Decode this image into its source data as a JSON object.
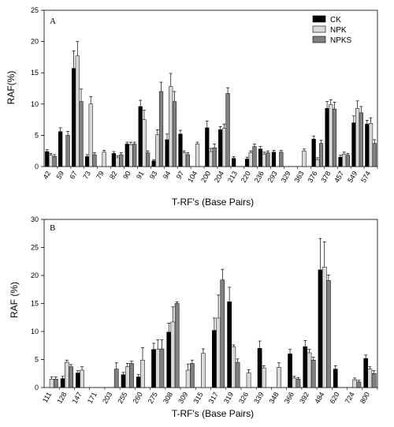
{
  "colors": {
    "CK": "#000000",
    "NPK": "#d9d9d9",
    "NPKS": "#808080"
  },
  "legend": [
    "CK",
    "NPK",
    "NPKS"
  ],
  "chart_data": [
    {
      "type": "bar",
      "panel": "A",
      "ylabel": "RAF(%)",
      "xlabel": "T-RF's (Base Pairs)",
      "ylim": [
        0,
        25
      ],
      "yticks": [
        0,
        5,
        10,
        15,
        20,
        25
      ],
      "legend_placement": "top-right",
      "categories": [
        "42",
        "59",
        "67",
        "73",
        "79",
        "82",
        "90",
        "91",
        "93",
        "94",
        "97",
        "104",
        "200",
        "204",
        "213",
        "220",
        "236",
        "293",
        "329",
        "363",
        "376",
        "378",
        "457",
        "549",
        "574"
      ],
      "series": [
        {
          "name": "CK",
          "values": [
            2.4,
            5.6,
            15.7,
            1.6,
            0,
            2.1,
            3.6,
            9.6,
            0.9,
            4.3,
            5.2,
            0,
            6.2,
            5.9,
            1.3,
            1.2,
            2.8,
            2.3,
            0,
            0,
            4.4,
            9.3,
            1.5,
            7.0,
            6.8
          ]
        },
        {
          "name": "NPK",
          "values": [
            1.8,
            0,
            17.7,
            10.0,
            2.3,
            1.4,
            3.5,
            7.5,
            5.1,
            12.8,
            2.2,
            3.6,
            2.4,
            6.1,
            0,
            2.2,
            2.0,
            0,
            0,
            2.5,
            1.1,
            9.9,
            2.0,
            9.3,
            6.9
          ]
        },
        {
          "name": "NPKS",
          "values": [
            1.6,
            5.0,
            10.4,
            1.9,
            0,
            1.9,
            3.6,
            2.2,
            12.0,
            10.4,
            1.9,
            0,
            3.0,
            11.7,
            0,
            3.2,
            2.2,
            2.3,
            0,
            0,
            3.7,
            9.2,
            1.8,
            8.6,
            3.7
          ]
        }
      ],
      "errors": [
        [
          0.3,
          0.6,
          2.8,
          0.3,
          0,
          0.3,
          0.3,
          1.0,
          0.2,
          0.9,
          0.6,
          0,
          1.1,
          0.5,
          0.3,
          0.3,
          0.4,
          0.3,
          0,
          0,
          0.5,
          1.1,
          0.3,
          1.1,
          0.6
        ],
        [
          0.3,
          0,
          2.3,
          1.2,
          0.3,
          0.3,
          0.4,
          1.5,
          0.8,
          2.1,
          0.3,
          0.3,
          0.5,
          0.7,
          0,
          0.3,
          0.3,
          0,
          0,
          0.3,
          0.3,
          0.8,
          0.3,
          1.2,
          0.9
        ],
        [
          0.3,
          0.6,
          2.0,
          0.3,
          0,
          0.3,
          0.3,
          0.3,
          1.5,
          1.6,
          0.3,
          0,
          0.6,
          0.9,
          0,
          0.4,
          0.3,
          0.3,
          0,
          0,
          0.5,
          1.1,
          0.3,
          1.0,
          0.6
        ]
      ]
    },
    {
      "type": "bar",
      "panel": "B",
      "ylabel": "RAF (%)",
      "xlabel": "T-RF's (Base Pairs)",
      "ylim": [
        0,
        30
      ],
      "yticks": [
        0,
        5,
        10,
        15,
        20,
        25,
        30
      ],
      "categories": [
        "111",
        "128",
        "147",
        "171",
        "203",
        "255",
        "260",
        "275",
        "308",
        "309",
        "315",
        "317",
        "319",
        "326",
        "339",
        "348",
        "366",
        "392",
        "484",
        "620",
        "724",
        "800"
      ],
      "series": [
        {
          "name": "CK",
          "values": [
            0,
            1.6,
            2.6,
            0,
            0,
            2.3,
            1.9,
            6.8,
            9.9,
            0,
            0,
            10.2,
            15.3,
            0,
            7.0,
            0,
            6.0,
            7.3,
            21.0,
            3.3,
            0,
            5.2
          ]
        },
        {
          "name": "NPK",
          "values": [
            1.5,
            4.5,
            3.1,
            0,
            0,
            3.7,
            4.9,
            6.8,
            11.7,
            3.1,
            6.1,
            12.4,
            7.3,
            2.6,
            3.5,
            3.6,
            1.7,
            6.2,
            21.5,
            0,
            1.4,
            3.3
          ]
        },
        {
          "name": "NPKS",
          "values": [
            1.5,
            3.7,
            0,
            0,
            3.3,
            4.3,
            0,
            6.9,
            15.0,
            4.3,
            0,
            19.2,
            4.5,
            0,
            0,
            0,
            1.5,
            4.9,
            19.1,
            0,
            1.0,
            2.5
          ]
        }
      ],
      "errors": [
        [
          0,
          0.4,
          0.4,
          0,
          0,
          0.4,
          0.4,
          1.1,
          1.6,
          0,
          0,
          2.2,
          2.6,
          0,
          1.3,
          0,
          0.8,
          1.1,
          5.6,
          0.6,
          0,
          0.6
        ],
        [
          0.4,
          0.4,
          0.6,
          0,
          0,
          0.6,
          2.2,
          1.7,
          2.7,
          1.1,
          0.8,
          4.1,
          0.3,
          0.6,
          0.4,
          0.8,
          0.3,
          0.6,
          4.5,
          0,
          0.3,
          0.4
        ],
        [
          0.4,
          0.4,
          0,
          0,
          1.1,
          0.4,
          0,
          1.6,
          0.3,
          0.6,
          0,
          1.9,
          0.6,
          0,
          0,
          0,
          0.3,
          0.5,
          1.0,
          0,
          0.3,
          0.5
        ]
      ]
    }
  ]
}
